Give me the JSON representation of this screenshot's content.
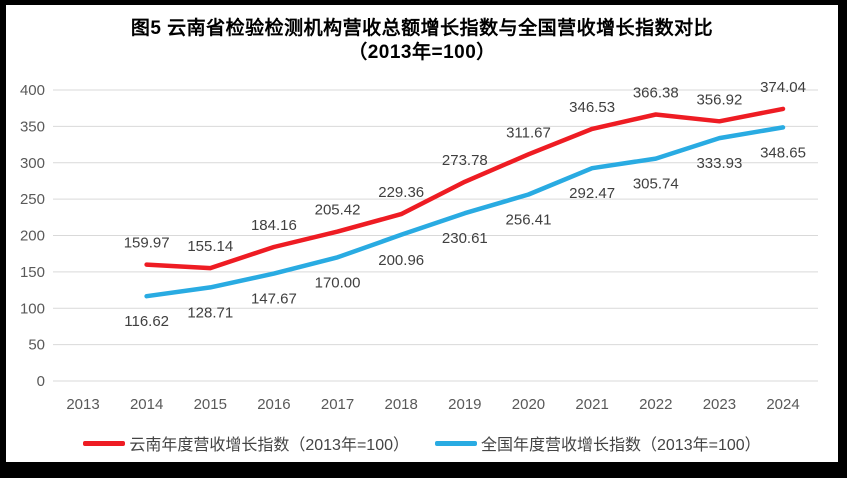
{
  "figure": {
    "title_line1": "图5  云南省检验检测机构营收总额增长指数与全国营收增长指数对比",
    "title_line2": "（2013年=100）"
  },
  "chart_data": {
    "type": "line",
    "x": [
      "2013",
      "2014",
      "2015",
      "2016",
      "2017",
      "2018",
      "2019",
      "2020",
      "2021",
      "2022",
      "2023",
      "2024"
    ],
    "series": [
      {
        "name": "云南年度营收增长指数（2013年=100）",
        "color": "#ee1c23",
        "label_position": "above",
        "values": [
          null,
          159.97,
          155.14,
          184.16,
          205.42,
          229.36,
          273.78,
          311.67,
          346.53,
          366.38,
          356.92,
          374.04
        ]
      },
      {
        "name": "全国年度营收增长指数（2013年=100）",
        "color": "#29abe2",
        "label_position": "below",
        "values": [
          null,
          116.62,
          128.71,
          147.67,
          170.0,
          200.96,
          230.61,
          256.41,
          292.47,
          305.74,
          333.93,
          348.65
        ]
      }
    ],
    "ylim": [
      0,
      400
    ],
    "ytick_step": 50,
    "grid": true,
    "gridline_color": "#d9d9d9",
    "legend_position": "bottom"
  }
}
